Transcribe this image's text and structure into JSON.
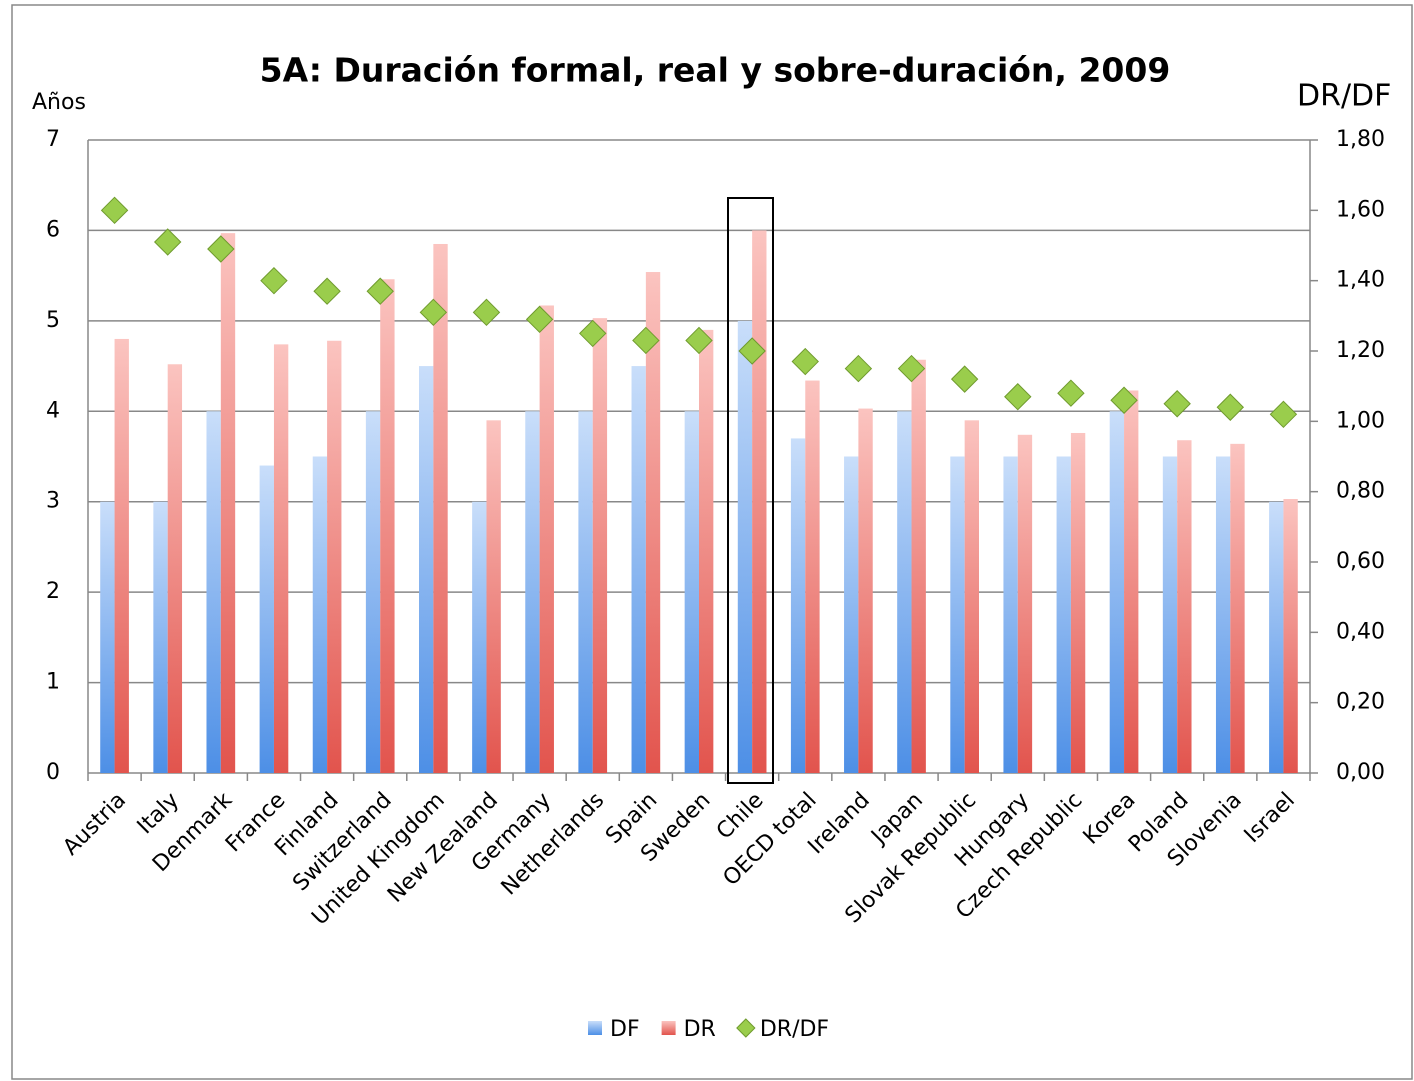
{
  "chart_data": {
    "type": "bar",
    "title": "5A: Duración formal, real y sobre-duración, 2009",
    "y_label": "Años",
    "y2_label": "DR/DF",
    "categories": [
      "Austria",
      "Italy",
      "Denmark",
      "France",
      "Finland",
      "Switzerland",
      "United Kingdom",
      "New Zealand",
      "Germany",
      "Netherlands",
      "Spain",
      "Sweden",
      "Chile",
      "OECD total",
      "Ireland",
      "Japan",
      "Slovak Republic",
      "Hungary",
      "Czech Republic",
      "Korea",
      "Poland",
      "Slovenia",
      "Israel"
    ],
    "series": [
      {
        "name": "DF",
        "type": "bar",
        "color": "#5b9bec",
        "values": [
          3,
          3,
          4,
          3.4,
          3.5,
          4,
          4.5,
          3,
          4,
          4,
          4.5,
          4,
          5,
          3.7,
          3.5,
          4,
          3.5,
          3.5,
          3.5,
          4,
          3.5,
          3.5,
          3
        ]
      },
      {
        "name": "DR",
        "type": "bar",
        "color": "#e8605a",
        "values": [
          4.8,
          4.52,
          5.97,
          4.74,
          4.78,
          5.46,
          5.85,
          3.9,
          5.17,
          5.03,
          5.54,
          4.9,
          6.0,
          4.34,
          4.03,
          4.57,
          3.9,
          3.74,
          3.76,
          4.23,
          3.68,
          3.64,
          3.03
        ]
      },
      {
        "name": "DR/DF",
        "type": "scatter",
        "axis": "y2",
        "color": "#9acd4c",
        "values": [
          1.6,
          1.51,
          1.49,
          1.4,
          1.37,
          1.37,
          1.31,
          1.31,
          1.29,
          1.25,
          1.23,
          1.23,
          1.2,
          1.17,
          1.15,
          1.15,
          1.12,
          1.07,
          1.08,
          1.06,
          1.05,
          1.04,
          1.02
        ]
      }
    ],
    "ylim": [
      0,
      7
    ],
    "yticks": [
      0,
      1,
      2,
      3,
      4,
      5,
      6,
      7
    ],
    "y2lim": [
      0,
      1.8
    ],
    "y2ticks": [
      {
        "value": 0,
        "label": "0,00"
      },
      {
        "value": 0.2,
        "label": "0,20"
      },
      {
        "value": 0.4,
        "label": "0,40"
      },
      {
        "value": 0.6,
        "label": "0,60"
      },
      {
        "value": 0.8,
        "label": "0,80"
      },
      {
        "value": 1,
        "label": "1,00"
      },
      {
        "value": 1.2,
        "label": "1,20"
      },
      {
        "value": 1.4,
        "label": "1,40"
      },
      {
        "value": 1.6,
        "label": "1,60"
      },
      {
        "value": 1.8,
        "label": "1,80"
      }
    ],
    "grid": true,
    "legend": "bottom"
  }
}
